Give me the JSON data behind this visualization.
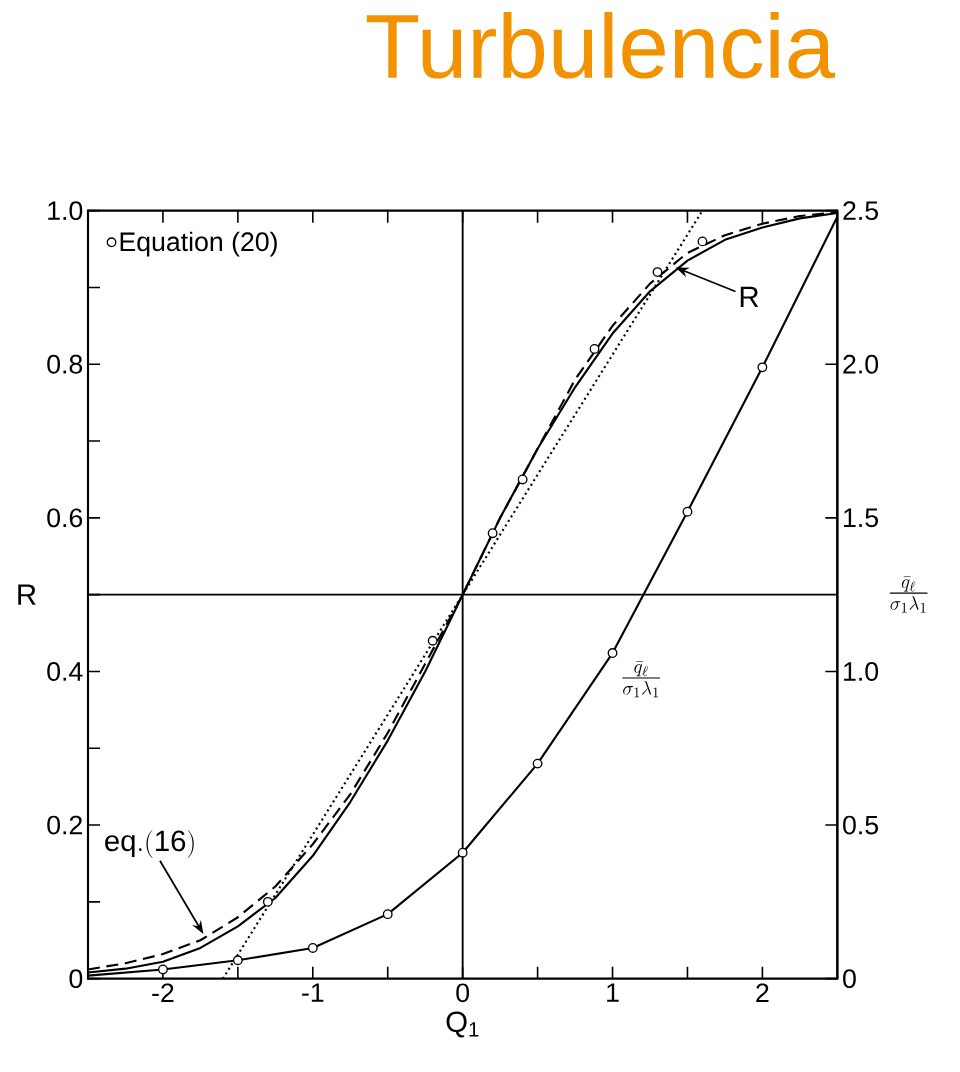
{
  "chart_data": {
    "type": "line",
    "title": "Turbulencia",
    "xlabel": "Q$_{1}$",
    "ylabel": "R",
    "y2label": "\\frac{\\bar{q}_{\\ell}}{\\sigma_{1}\\lambda_{1}}",
    "xlim": [
      -2.5,
      2.5
    ],
    "ylim": [
      0,
      1
    ],
    "y2lim": [
      0,
      2.5
    ],
    "xticks": [
      -2,
      {
        "value": -1.5,
        "label": null
      },
      -1,
      {
        "value": -0.5,
        "label": null
      },
      0,
      {
        "value": 0.5,
        "label": null
      },
      1,
      {
        "value": 1.5,
        "label": null
      },
      2
    ],
    "yticks": [
      0,
      {
        "value": 0.1,
        "label": null
      },
      0.2,
      {
        "value": 0.3,
        "label": null
      },
      0.4,
      {
        "value": 0.5,
        "label": null
      },
      0.6,
      {
        "value": 0.7,
        "label": null
      },
      0.8,
      {
        "value": 0.9,
        "label": null
      },
      {
        "value": 1,
        "label": "1.0"
      }
    ],
    "y2ticks": [
      0,
      0.5,
      {
        "value": 1,
        "label": "1.0"
      },
      1.5,
      {
        "value": 2,
        "label": "2.0"
      },
      2.5
    ],
    "grid": false,
    "legend": "top left",
    "ref_lines": [
      {
        "axis": "x",
        "value": 0,
        "color": "#000000"
      },
      {
        "axis": "y",
        "value": 0.5,
        "color": "#000000"
      }
    ],
    "annotations": [
      {
        "text": "\\mathrm{R}",
        "x": 1.42,
        "y": 0.926
      },
      {
        "text": "\\mathrm{eq.(16)}",
        "x": -1.73,
        "y": 0.058
      },
      {
        "text": "\\frac{\\bar{q}_{\\ell}}{\\sigma_{1}\\lambda_{1}}",
        "x": 1.0,
        "y": 0.42
      }
    ],
    "series": [
      {
        "color": "#000000",
        "line_style": "solid",
        "marker": "none",
        "x": [
          -2.5,
          -2.25,
          -2,
          -1.75,
          -1.5,
          -1.25,
          -1,
          -0.75,
          -0.5,
          -0.25,
          0,
          0.25,
          0.5,
          0.75,
          1,
          1.25,
          1.5,
          1.75,
          2,
          2.25,
          2.5
        ],
        "values": [
          0.008,
          0.013,
          0.022,
          0.04,
          0.068,
          0.105,
          0.16,
          0.23,
          0.31,
          0.4,
          0.5,
          0.6,
          0.69,
          0.77,
          0.84,
          0.895,
          0.935,
          0.962,
          0.978,
          0.99,
          0.997
        ]
      },
      {
        "color": "#000000",
        "line_style": "dashed",
        "marker": "none",
        "x": [
          -2.5,
          -2.25,
          -2,
          -1.75,
          -1.5,
          -1.25,
          -1,
          -0.75,
          -0.5,
          -0.25,
          0,
          0.25,
          0.5,
          0.75,
          1,
          1.25,
          1.5,
          1.75,
          2,
          2.25,
          2.5
        ],
        "values": [
          0.012,
          0.02,
          0.032,
          0.05,
          0.08,
          0.12,
          0.175,
          0.24,
          0.32,
          0.41,
          0.5,
          0.6,
          0.69,
          0.78,
          0.85,
          0.905,
          0.945,
          0.968,
          0.983,
          0.993,
          0.998
        ]
      },
      {
        "color": "#000000",
        "line_style": "dotted",
        "marker": "none",
        "x": [
          -1.6,
          1.6
        ],
        "values": [
          0,
          1
        ]
      },
      {
        "color": "#000000",
        "line_style": "solid",
        "marker": "none",
        "axis": "y2",
        "x": [
          -2.5,
          -2,
          -1.5,
          -1,
          -0.5,
          0,
          0.5,
          1,
          1.5,
          2,
          2.5
        ],
        "values": [
          0.01,
          0.03,
          0.06,
          0.1,
          0.21,
          0.41,
          0.7,
          1.06,
          1.52,
          1.99,
          2.48
        ]
      },
      {
        "type": "scatter",
        "name": "Equation (20)",
        "color": "#000000",
        "marker": "circle",
        "x": [
          -1.3,
          -0.2,
          0.2,
          0.4,
          0.88,
          1.3,
          1.6
        ],
        "values": [
          0.1,
          0.44,
          0.58,
          0.65,
          0.82,
          0.92,
          0.96
        ]
      },
      {
        "type": "scatter",
        "color": "#000000",
        "marker": "circle",
        "axis": "y2",
        "x": [
          -2,
          -1.5,
          -1,
          -0.5,
          0,
          0.5,
          1,
          1.5,
          2
        ],
        "values": [
          0.03,
          0.06,
          0.1,
          0.21,
          0.41,
          0.7,
          1.06,
          1.52,
          1.99
        ]
      }
    ]
  }
}
